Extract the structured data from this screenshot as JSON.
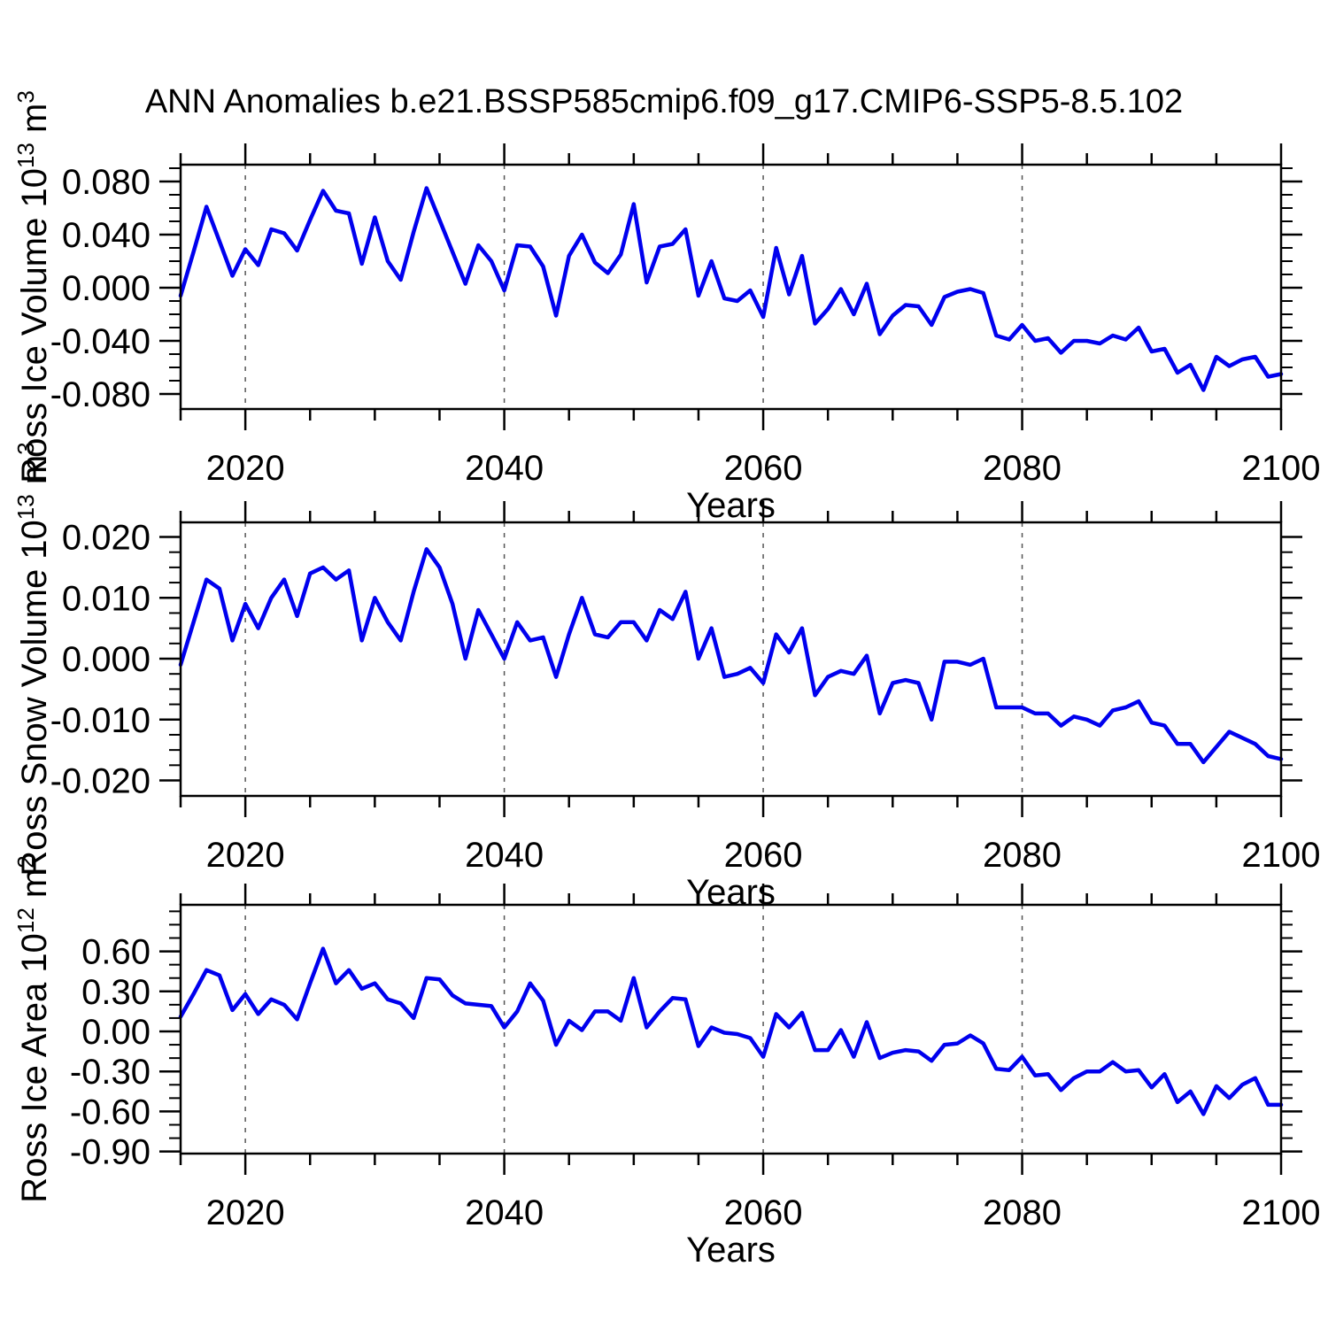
{
  "title": "ANN Anomalies b.e21.BSSP585cmip6.f09_g17.CMIP6-SSP5-8.5.102",
  "colors": {
    "line": "#0000EE",
    "frame": "#000000",
    "grid": "#555555",
    "text": "#000000"
  },
  "x_axis": {
    "label": "Years",
    "start": 2015,
    "end": 2100,
    "step": 1,
    "major_ticks": [
      2020,
      2040,
      2060,
      2080,
      2100
    ],
    "minor_step": 5,
    "grid_years": [
      2020,
      2040,
      2060,
      2080
    ]
  },
  "chart_data": [
    {
      "type": "line",
      "name": "ross-ice-volume",
      "ylabel": "Ross Ice Volume 10^13 m^3",
      "ylabel_parts": [
        {
          "t": "Ross Ice Volume 10"
        },
        {
          "t": "13",
          "sup": true
        },
        {
          "t": " m"
        },
        {
          "t": "3",
          "sup": true
        }
      ],
      "xlabel": "Years",
      "ytick_labels": [
        "0.080",
        "0.040",
        "0.000",
        "-0.040",
        "-0.080"
      ],
      "ytick_values": [
        0.08,
        0.04,
        0.0,
        -0.04,
        -0.08
      ],
      "y_minor_step": 0.01,
      "ylim": [
        -0.0913,
        0.0927
      ],
      "legend": "none",
      "grid": "vertical-dashed",
      "values": [
        -0.006,
        0.027,
        0.061,
        0.035,
        0.009,
        0.029,
        0.017,
        0.044,
        0.041,
        0.028,
        0.051,
        0.073,
        0.058,
        0.056,
        0.018,
        0.053,
        0.02,
        0.006,
        0.042,
        0.075,
        0.051,
        0.027,
        0.003,
        0.032,
        0.02,
        -0.002,
        0.032,
        0.031,
        0.016,
        -0.021,
        0.024,
        0.04,
        0.019,
        0.011,
        0.025,
        0.063,
        0.004,
        0.031,
        0.033,
        0.044,
        -0.006,
        0.02,
        -0.008,
        -0.01,
        -0.002,
        -0.022,
        0.03,
        -0.005,
        0.024,
        -0.027,
        -0.016,
        -0.001,
        -0.02,
        0.003,
        -0.035,
        -0.021,
        -0.013,
        -0.014,
        -0.028,
        -0.007,
        -0.003,
        -0.001,
        -0.004,
        -0.036,
        -0.039,
        -0.028,
        -0.04,
        -0.038,
        -0.049,
        -0.04,
        -0.04,
        -0.042,
        -0.036,
        -0.039,
        -0.03,
        -0.048,
        -0.046,
        -0.064,
        -0.058,
        -0.077,
        -0.052,
        -0.059,
        -0.054,
        -0.052,
        -0.067,
        -0.065
      ]
    },
    {
      "type": "line",
      "name": "ross-snow-volume",
      "ylabel": "Ross Snow Volume 10^13 m^3",
      "ylabel_parts": [
        {
          "t": "Ross Snow Volume 10"
        },
        {
          "t": "13",
          "sup": true
        },
        {
          "t": " m"
        },
        {
          "t": "3",
          "sup": true
        }
      ],
      "xlabel": "Years",
      "ytick_labels": [
        "0.020",
        "0.010",
        "0.000",
        "-0.010",
        "-0.020"
      ],
      "ytick_values": [
        0.02,
        0.01,
        0.0,
        -0.01,
        -0.02
      ],
      "y_minor_step": 0.0025,
      "ylim": [
        -0.0225,
        0.0224
      ],
      "legend": "none",
      "grid": "vertical-dashed",
      "values": [
        -0.001,
        0.006,
        0.013,
        0.0115,
        0.003,
        0.009,
        0.005,
        0.01,
        0.013,
        0.007,
        0.014,
        0.015,
        0.013,
        0.0145,
        0.003,
        0.01,
        0.006,
        0.003,
        0.011,
        0.018,
        0.015,
        0.009,
        0.0,
        0.008,
        0.004,
        0.0,
        0.006,
        0.003,
        0.0035,
        -0.003,
        0.004,
        0.01,
        0.004,
        0.0035,
        0.006,
        0.006,
        0.003,
        0.008,
        0.0065,
        0.011,
        0.0,
        0.005,
        -0.003,
        -0.0025,
        -0.0015,
        -0.004,
        0.004,
        0.001,
        0.005,
        -0.006,
        -0.003,
        -0.002,
        -0.0025,
        0.0005,
        -0.009,
        -0.004,
        -0.0035,
        -0.004,
        -0.01,
        -0.0005,
        -0.0005,
        -0.001,
        0.0,
        -0.008,
        -0.008,
        -0.008,
        -0.009,
        -0.009,
        -0.011,
        -0.0095,
        -0.01,
        -0.011,
        -0.0085,
        -0.008,
        -0.007,
        -0.0105,
        -0.011,
        -0.014,
        -0.014,
        -0.017,
        -0.0145,
        -0.012,
        -0.013,
        -0.014,
        -0.016,
        -0.0165
      ]
    },
    {
      "type": "line",
      "name": "ross-ice-area",
      "ylabel": "Ross Ice Area 10^12 m^2",
      "ylabel_parts": [
        {
          "t": "Ross Ice Area 10"
        },
        {
          "t": "12",
          "sup": true
        },
        {
          "t": " m"
        },
        {
          "t": "2",
          "sup": true
        }
      ],
      "xlabel": "Years",
      "ytick_labels": [
        "0.60",
        "0.30",
        "0.00",
        "-0.30",
        "-0.60",
        "-0.90"
      ],
      "ytick_values": [
        0.6,
        0.3,
        0.0,
        -0.3,
        -0.6,
        -0.9
      ],
      "y_minor_step": 0.1,
      "ylim": [
        -0.916,
        0.949
      ],
      "legend": "none",
      "grid": "vertical-dashed",
      "values": [
        0.11,
        0.28,
        0.46,
        0.42,
        0.16,
        0.28,
        0.13,
        0.24,
        0.2,
        0.09,
        0.36,
        0.62,
        0.36,
        0.46,
        0.32,
        0.36,
        0.24,
        0.21,
        0.1,
        0.4,
        0.39,
        0.27,
        0.21,
        0.2,
        0.19,
        0.03,
        0.15,
        0.36,
        0.23,
        -0.1,
        0.08,
        0.01,
        0.15,
        0.15,
        0.08,
        0.4,
        0.03,
        0.15,
        0.25,
        0.24,
        -0.11,
        0.03,
        -0.01,
        -0.02,
        -0.05,
        -0.19,
        0.13,
        0.03,
        0.14,
        -0.14,
        -0.14,
        0.01,
        -0.19,
        0.07,
        -0.2,
        -0.16,
        -0.14,
        -0.15,
        -0.22,
        -0.1,
        -0.09,
        -0.03,
        -0.09,
        -0.28,
        -0.29,
        -0.19,
        -0.33,
        -0.32,
        -0.44,
        -0.35,
        -0.3,
        -0.3,
        -0.23,
        -0.3,
        -0.29,
        -0.42,
        -0.32,
        -0.53,
        -0.45,
        -0.62,
        -0.41,
        -0.5,
        -0.4,
        -0.35,
        -0.55,
        -0.55
      ]
    }
  ]
}
